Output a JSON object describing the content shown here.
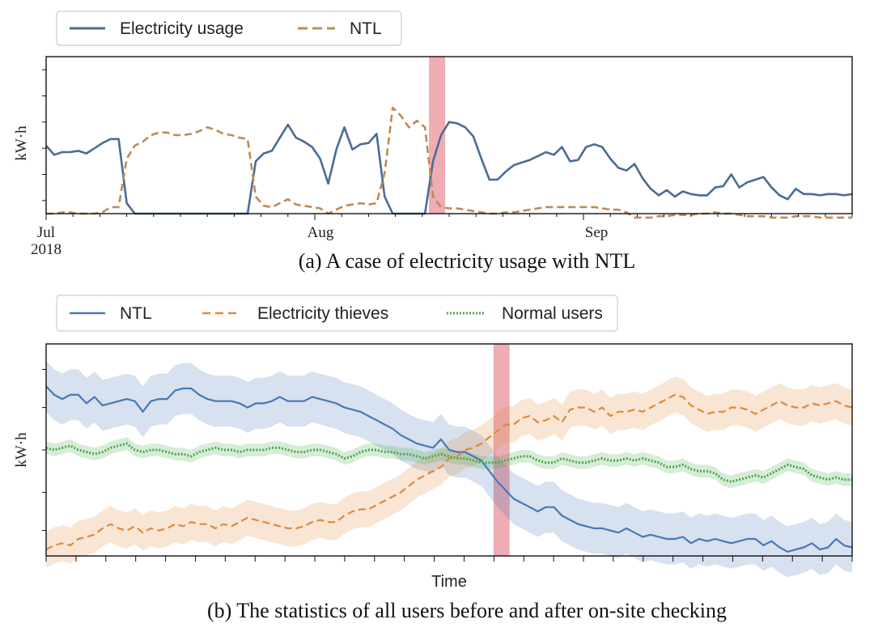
{
  "chart_data": [
    {
      "type": "line",
      "ylabel": "kW·h",
      "x_tick_labels": [
        "Jul",
        "Aug",
        "Sep"
      ],
      "x_tick_year": "2018",
      "caption": "(a) A case of electricity usage with NTL",
      "legend": [
        "Electricity usage",
        "NTL"
      ],
      "legend_placement": "top-left, above plot",
      "ylim": [
        0,
        6
      ],
      "highlight": {
        "start": 47.5,
        "end": 49.5,
        "color": "#e8909a"
      },
      "series": [
        {
          "name": "Electricity usage",
          "style": "solid",
          "color": "#4a6c96",
          "values": [
            2.6,
            2.25,
            2.35,
            2.35,
            2.4,
            2.3,
            2.5,
            2.7,
            2.85,
            2.85,
            0.4,
            0.0,
            0.0,
            0.0,
            0.0,
            0.0,
            0.0,
            0.0,
            0.0,
            0.0,
            0.0,
            0.0,
            0.0,
            0.0,
            0.0,
            0.0,
            2.0,
            2.3,
            2.4,
            2.9,
            3.4,
            2.9,
            2.75,
            2.55,
            2.1,
            1.15,
            2.45,
            3.3,
            2.45,
            2.65,
            2.7,
            3.05,
            0.65,
            0.0,
            0.0,
            0.0,
            0.0,
            0.0,
            2.0,
            3.0,
            3.5,
            3.45,
            3.3,
            2.95,
            2.1,
            1.3,
            1.3,
            1.6,
            1.85,
            1.95,
            2.05,
            2.2,
            2.35,
            2.25,
            2.55,
            2.0,
            2.05,
            2.55,
            2.65,
            2.55,
            2.1,
            1.75,
            1.65,
            1.9,
            1.35,
            0.95,
            0.7,
            0.9,
            0.65,
            0.85,
            0.75,
            0.7,
            0.7,
            1.0,
            1.05,
            1.5,
            1.0,
            1.2,
            1.3,
            1.4,
            1.0,
            0.7,
            0.55,
            0.95,
            0.75,
            0.75,
            0.7,
            0.75,
            0.75,
            0.7,
            0.75
          ]
        },
        {
          "name": "NTL",
          "style": "dashed",
          "color": "#c08a55",
          "values": [
            0.0,
            0.0,
            0.05,
            0.05,
            0.0,
            0.0,
            0.0,
            0.05,
            0.25,
            0.25,
            2.1,
            2.6,
            2.75,
            3.0,
            3.1,
            3.1,
            3.0,
            3.0,
            3.05,
            3.15,
            3.3,
            3.2,
            3.05,
            3.0,
            2.9,
            2.85,
            0.65,
            0.3,
            0.25,
            0.4,
            0.55,
            0.35,
            0.3,
            0.25,
            0.2,
            0.0,
            0.15,
            0.3,
            0.35,
            0.4,
            0.35,
            0.4,
            1.55,
            4.05,
            3.75,
            3.3,
            3.55,
            3.3,
            0.65,
            0.25,
            0.2,
            0.2,
            0.15,
            0.1,
            0.05,
            0.0,
            0.0,
            0.05,
            0.05,
            0.1,
            0.15,
            0.2,
            0.25,
            0.25,
            0.25,
            0.25,
            0.25,
            0.25,
            0.25,
            0.2,
            0.15,
            0.15,
            0.05,
            -0.15,
            -0.15,
            -0.15,
            -0.1,
            -0.1,
            -0.05,
            -0.05,
            -0.05,
            0.0,
            0.0,
            0.05,
            0.0,
            0.0,
            -0.05,
            -0.1,
            -0.1,
            -0.1,
            -0.15,
            -0.15,
            -0.15,
            -0.1,
            -0.1,
            -0.1,
            -0.15,
            -0.15,
            -0.15,
            -0.15,
            -0.15
          ]
        }
      ]
    },
    {
      "type": "line",
      "ylabel": "kW·h",
      "xlabel": "Time",
      "caption": "(b) The statistics of all users before and after on-site checking",
      "legend": [
        "NTL",
        "Electricity thieves",
        "Normal users"
      ],
      "legend_placement": "top-left, above plot",
      "ylim": [
        0,
        10
      ],
      "highlight": {
        "start": 55.5,
        "end": 57.5,
        "color": "#e8909a"
      },
      "band_half_width": [
        1.2,
        0.85,
        0.3
      ],
      "series": [
        {
          "name": "NTL",
          "style": "solid",
          "color": "#4a78b5",
          "values": [
            8.0,
            7.6,
            7.4,
            7.6,
            7.6,
            7.2,
            7.5,
            7.1,
            7.2,
            7.3,
            7.4,
            7.3,
            6.8,
            7.3,
            7.4,
            7.4,
            7.8,
            7.9,
            7.9,
            7.6,
            7.4,
            7.3,
            7.3,
            7.3,
            7.2,
            7.0,
            7.2,
            7.2,
            7.3,
            7.5,
            7.3,
            7.3,
            7.3,
            7.5,
            7.4,
            7.3,
            7.2,
            7.0,
            6.9,
            6.8,
            6.6,
            6.4,
            6.2,
            6.0,
            5.7,
            5.5,
            5.3,
            5.2,
            5.1,
            5.5,
            5.0,
            4.9,
            4.9,
            4.7,
            4.5,
            4.0,
            3.5,
            3.1,
            2.7,
            2.5,
            2.3,
            2.1,
            2.3,
            2.3,
            1.9,
            1.7,
            1.5,
            1.4,
            1.3,
            1.3,
            1.2,
            1.1,
            1.3,
            1.1,
            0.9,
            1.0,
            0.9,
            0.8,
            0.8,
            0.9,
            0.6,
            0.8,
            0.7,
            0.8,
            0.7,
            0.6,
            0.7,
            0.8,
            0.8,
            0.5,
            0.7,
            0.4,
            0.2,
            0.3,
            0.4,
            0.6,
            0.3,
            0.4,
            0.8,
            0.5,
            0.4
          ]
        },
        {
          "name": "Electricity thieves",
          "style": "dashed",
          "color": "#e0893a",
          "values": [
            0.3,
            0.5,
            0.6,
            0.5,
            0.8,
            0.9,
            1.0,
            1.3,
            1.5,
            1.3,
            1.2,
            1.4,
            1.1,
            1.3,
            1.2,
            1.3,
            1.5,
            1.4,
            1.6,
            1.5,
            1.5,
            1.3,
            1.5,
            1.4,
            1.6,
            1.8,
            1.7,
            1.6,
            1.5,
            1.4,
            1.3,
            1.3,
            1.4,
            1.6,
            1.7,
            1.6,
            1.6,
            1.9,
            2.1,
            2.2,
            2.2,
            2.4,
            2.6,
            2.8,
            3.0,
            3.3,
            3.6,
            3.8,
            4.0,
            4.2,
            4.6,
            4.7,
            5.0,
            5.1,
            5.3,
            5.6,
            5.9,
            6.2,
            6.2,
            6.5,
            6.6,
            6.3,
            6.4,
            6.6,
            6.3,
            6.9,
            7.0,
            7.0,
            6.8,
            7.0,
            6.6,
            6.8,
            6.8,
            6.9,
            6.8,
            7.0,
            7.2,
            7.4,
            7.6,
            7.5,
            7.1,
            6.9,
            6.7,
            6.8,
            6.8,
            7.0,
            7.0,
            6.9,
            6.7,
            6.9,
            7.1,
            7.3,
            7.1,
            7.0,
            7.0,
            7.2,
            7.1,
            7.2,
            7.3,
            7.1,
            7.0
          ]
        },
        {
          "name": "Normal users",
          "style": "dotted",
          "color": "#4aa84a",
          "values": [
            5.1,
            5.0,
            5.1,
            5.2,
            5.0,
            4.9,
            4.8,
            4.9,
            5.1,
            5.2,
            5.3,
            5.0,
            4.9,
            5.0,
            5.0,
            4.9,
            4.8,
            4.8,
            4.7,
            4.9,
            5.0,
            5.1,
            5.0,
            5.0,
            4.9,
            5.0,
            5.0,
            5.0,
            5.1,
            5.1,
            5.0,
            4.9,
            4.9,
            5.0,
            5.0,
            4.9,
            4.8,
            4.6,
            4.7,
            4.9,
            5.0,
            5.0,
            4.9,
            4.9,
            4.8,
            4.8,
            4.7,
            4.6,
            4.7,
            4.8,
            4.7,
            4.6,
            4.6,
            4.5,
            4.4,
            4.4,
            4.4,
            4.5,
            4.6,
            4.7,
            4.7,
            4.5,
            4.4,
            4.4,
            4.6,
            4.5,
            4.4,
            4.4,
            4.5,
            4.6,
            4.5,
            4.5,
            4.6,
            4.5,
            4.6,
            4.5,
            4.4,
            4.2,
            4.2,
            4.3,
            4.1,
            4.0,
            4.0,
            3.9,
            3.6,
            3.5,
            3.6,
            3.7,
            3.8,
            3.7,
            3.9,
            4.1,
            4.3,
            4.2,
            4.1,
            3.8,
            3.7,
            3.6,
            3.7,
            3.6,
            3.6
          ]
        }
      ]
    }
  ]
}
